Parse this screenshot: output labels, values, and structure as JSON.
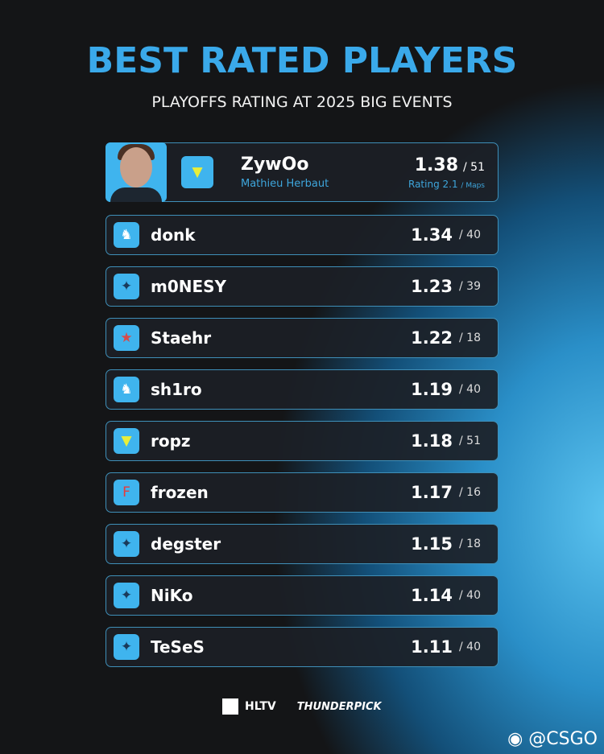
{
  "title": "BEST RATED PLAYERS",
  "subtitle": "PLAYOFFS RATING AT 2025 BIG EVENTS",
  "top_player": {
    "name": "ZywOo",
    "real_name": "Mathieu Herbaut",
    "rating": "1.38",
    "maps": "/ 51",
    "rating_label": "Rating 2.1",
    "maps_label": "/ Maps",
    "team": "Vitality"
  },
  "players": [
    {
      "name": "donk",
      "rating": "1.34",
      "maps": "/ 40",
      "team": "Spirit",
      "icon": "dragon"
    },
    {
      "name": "m0NESY",
      "rating": "1.23",
      "maps": "/ 39",
      "team": "Falcons",
      "icon": "falcon"
    },
    {
      "name": "Staehr",
      "rating": "1.22",
      "maps": "/ 18",
      "team": "Astralis",
      "icon": "star"
    },
    {
      "name": "sh1ro",
      "rating": "1.19",
      "maps": "/ 40",
      "team": "Spirit",
      "icon": "dragon"
    },
    {
      "name": "ropz",
      "rating": "1.18",
      "maps": "/ 51",
      "team": "Vitality",
      "icon": "bee"
    },
    {
      "name": "frozen",
      "rating": "1.17",
      "maps": "/ 16",
      "team": "FaZe",
      "icon": "faze"
    },
    {
      "name": "degster",
      "rating": "1.15",
      "maps": "/ 18",
      "team": "Falcons",
      "icon": "falcon"
    },
    {
      "name": "NiKo",
      "rating": "1.14",
      "maps": "/ 40",
      "team": "Falcons",
      "icon": "falcon"
    },
    {
      "name": "TeSeS",
      "rating": "1.11",
      "maps": "/ 40",
      "team": "Falcons",
      "icon": "falcon"
    }
  ],
  "footer": {
    "hltv": "HLTV",
    "sponsor": "THUNDERPICK",
    "watermark": "@CSGO"
  },
  "colors": {
    "accent": "#3aa9ea",
    "logo_bg": "#3fb4ee",
    "border": "#3f8fb8"
  }
}
